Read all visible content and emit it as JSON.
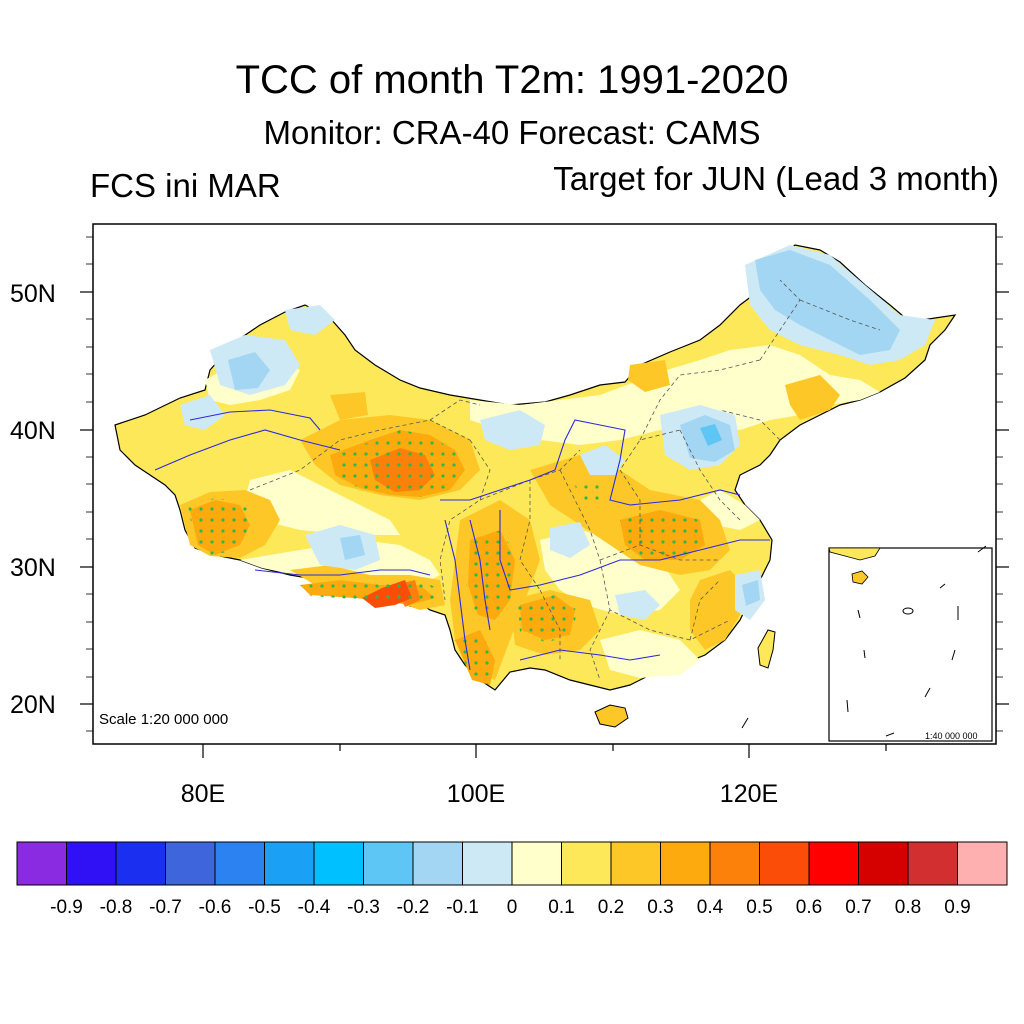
{
  "title": "TCC of month T2m: 1991-2020",
  "subtitle": "Monitor: CRA-40   Forecast: CAMS",
  "left_label": "FCS ini MAR",
  "right_label": "Target for JUN (Lead 3 month)",
  "lat_labels": [
    "50N",
    "40N",
    "30N",
    "20N"
  ],
  "lon_labels": [
    "80E",
    "100E",
    "120E"
  ],
  "scale_main": "Scale 1:20 000 000",
  "scale_inset": "1:40 000 000",
  "colorbar": {
    "colors": [
      "#8a2be2",
      "#3010f5",
      "#1a2ff0",
      "#3f65dc",
      "#2b82f0",
      "#1aa0f5",
      "#00c0ff",
      "#5ec6f5",
      "#a3d6f2",
      "#cde9f6",
      "#ffffcc",
      "#fde85a",
      "#fdc827",
      "#fcaa0e",
      "#fb810a",
      "#fb4c08",
      "#fe0000",
      "#d50000",
      "#d23030",
      "#feb0b0"
    ],
    "labels": [
      "-0.9",
      "-0.8",
      "-0.7",
      "-0.6",
      "-0.5",
      "-0.4",
      "-0.3",
      "-0.2",
      "-0.1",
      "0",
      "0.1",
      "0.2",
      "0.3",
      "0.4",
      "0.5",
      "0.6",
      "0.7",
      "0.8",
      "0.9"
    ]
  },
  "map_colors": {
    "light_yellow": "#ffffcc",
    "yellow": "#fde85a",
    "gold": "#fdc827",
    "orange": "#fcaa0e",
    "dark_orange": "#fb810a",
    "red_orange": "#fb4c08",
    "pale_blue": "#cde9f6",
    "light_blue": "#a3d6f2",
    "blue": "#5ec6f5",
    "stipple": "#2fb84a",
    "river": "#2a2ae0"
  }
}
